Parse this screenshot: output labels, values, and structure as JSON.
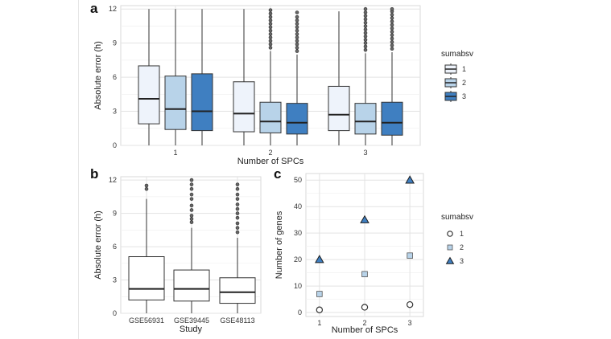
{
  "chart_data": [
    {
      "panel": "a",
      "type": "box",
      "xlabel": "Number of SPCs",
      "ylabel": "Absolute error (h)",
      "ylim": [
        0,
        12.3
      ],
      "yticks": [
        0,
        3,
        6,
        9,
        12
      ],
      "categories": [
        "1",
        "2",
        "3"
      ],
      "legend": {
        "title": "sumabsv",
        "position": "right"
      },
      "series": [
        {
          "name": "1",
          "color": "#eef3fb",
          "boxes": [
            {
              "min": 0,
              "q1": 1.9,
              "median": 4.1,
              "q3": 7.0,
              "max": 12.0,
              "outliers": []
            },
            {
              "min": 0,
              "q1": 1.2,
              "median": 2.8,
              "q3": 5.6,
              "max": 12.0,
              "outliers": []
            },
            {
              "min": 0,
              "q1": 1.3,
              "median": 2.7,
              "q3": 5.2,
              "max": 11.8,
              "outliers": []
            }
          ]
        },
        {
          "name": "2",
          "color": "#b8d3e9",
          "boxes": [
            {
              "min": 0,
              "q1": 1.4,
              "median": 3.2,
              "q3": 6.1,
              "max": 12.0,
              "outliers": []
            },
            {
              "min": 0,
              "q1": 1.1,
              "median": 2.1,
              "q3": 3.8,
              "max": 8.3,
              "outliers": [
                8.6,
                8.9,
                9.2,
                9.5,
                9.8,
                10.1,
                10.4,
                10.7,
                11.0,
                11.3,
                11.6,
                11.9
              ]
            },
            {
              "min": 0,
              "q1": 1.0,
              "median": 2.1,
              "q3": 3.7,
              "max": 8.1,
              "outliers": [
                8.4,
                8.7,
                9.0,
                9.3,
                9.6,
                9.9,
                10.2,
                10.5,
                10.8,
                11.1,
                11.4,
                11.7,
                12.0
              ]
            }
          ]
        },
        {
          "name": "3",
          "color": "#3f7fc1",
          "boxes": [
            {
              "min": 0,
              "q1": 1.3,
              "median": 3.0,
              "q3": 6.3,
              "max": 12.0,
              "outliers": []
            },
            {
              "min": 0,
              "q1": 1.0,
              "median": 2.0,
              "q3": 3.7,
              "max": 8.0,
              "outliers": [
                8.3,
                8.6,
                8.9,
                9.2,
                9.5,
                9.8,
                10.1,
                10.4,
                10.7,
                11.0,
                11.3,
                11.7
              ]
            },
            {
              "min": 0,
              "q1": 0.9,
              "median": 2.0,
              "q3": 3.8,
              "max": 8.2,
              "outliers": [
                8.5,
                8.8,
                9.1,
                9.4,
                9.7,
                10.0,
                10.3,
                10.6,
                10.9,
                11.2,
                11.5,
                11.8,
                12.0
              ]
            }
          ]
        }
      ]
    },
    {
      "panel": "b",
      "type": "box",
      "xlabel": "Study",
      "ylabel": "Absolute error (h)",
      "ylim": [
        0,
        12.3
      ],
      "yticks": [
        0,
        3,
        6,
        9,
        12
      ],
      "categories": [
        "GSE56931",
        "GSE39445",
        "GSE48113"
      ],
      "color": "#ffffff",
      "boxes": [
        {
          "min": 0,
          "q1": 1.2,
          "median": 2.2,
          "q3": 5.1,
          "max": 10.3,
          "outliers": [
            11.2,
            11.5
          ]
        },
        {
          "min": 0,
          "q1": 1.1,
          "median": 2.2,
          "q3": 3.9,
          "max": 7.7,
          "outliers": [
            8.2,
            8.5,
            8.8,
            9.3,
            9.7,
            10.3,
            10.7,
            11.2,
            11.6,
            12.0
          ]
        },
        {
          "min": 0,
          "q1": 0.9,
          "median": 1.9,
          "q3": 3.2,
          "max": 6.8,
          "outliers": [
            7.3,
            7.7,
            8.1,
            8.6,
            9.0,
            9.4,
            9.8,
            10.3,
            10.7,
            11.2,
            11.6
          ]
        }
      ]
    },
    {
      "panel": "c",
      "type": "scatter",
      "xlabel": "Number of SPCs",
      "ylabel": "Number of genes",
      "xticks": [
        1,
        2,
        3
      ],
      "xlim": [
        0.7,
        3.3
      ],
      "ylim": [
        -1.5,
        52.5
      ],
      "yticks": [
        0,
        10,
        20,
        30,
        40,
        50
      ],
      "legend": {
        "title": "sumabsv",
        "position": "right"
      },
      "series": [
        {
          "name": "1",
          "shape": "circle",
          "color": "#ffffff",
          "points": [
            [
              1,
              1
            ],
            [
              2,
              2
            ],
            [
              3,
              3
            ]
          ]
        },
        {
          "name": "2",
          "shape": "square",
          "color": "#b8d3e9",
          "points": [
            [
              1,
              7
            ],
            [
              2,
              14.5
            ],
            [
              3,
              21.5
            ]
          ]
        },
        {
          "name": "3",
          "shape": "triangle",
          "color": "#3f7fc1",
          "points": [
            [
              1,
              20
            ],
            [
              2,
              35
            ],
            [
              3,
              50
            ]
          ]
        }
      ]
    }
  ]
}
